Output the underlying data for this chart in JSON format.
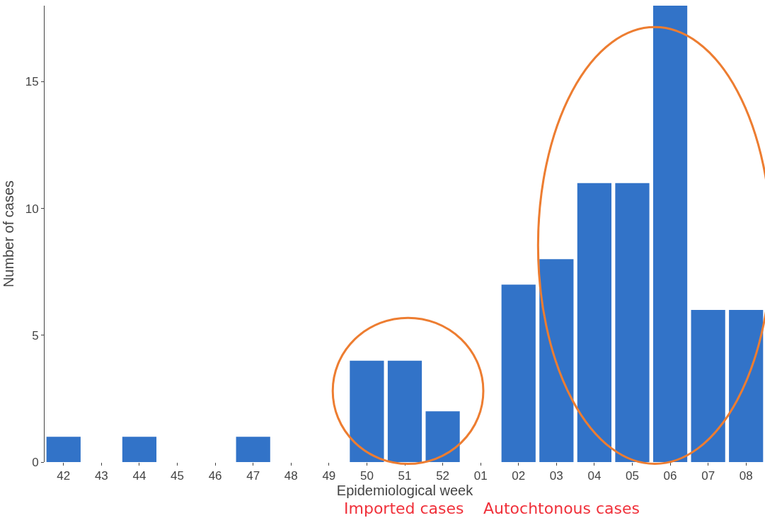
{
  "chart_data": {
    "type": "bar",
    "xlabel": "Epidemiological week",
    "ylabel": "Number of cases",
    "categories": [
      "42",
      "43",
      "44",
      "45",
      "46",
      "47",
      "48",
      "49",
      "50",
      "51",
      "52",
      "01",
      "02",
      "03",
      "04",
      "05",
      "06",
      "07",
      "08"
    ],
    "values": [
      1,
      0,
      1,
      0,
      0,
      1,
      0,
      0,
      4,
      4,
      2,
      0,
      7,
      8,
      11,
      11,
      18,
      6,
      6
    ],
    "color": "#3273c8",
    "ylim": [
      0,
      18
    ],
    "yticks": [
      0,
      5,
      10,
      15
    ],
    "grid": false,
    "annotations": [
      "Imported cases",
      "Autochtonous cases"
    ]
  }
}
